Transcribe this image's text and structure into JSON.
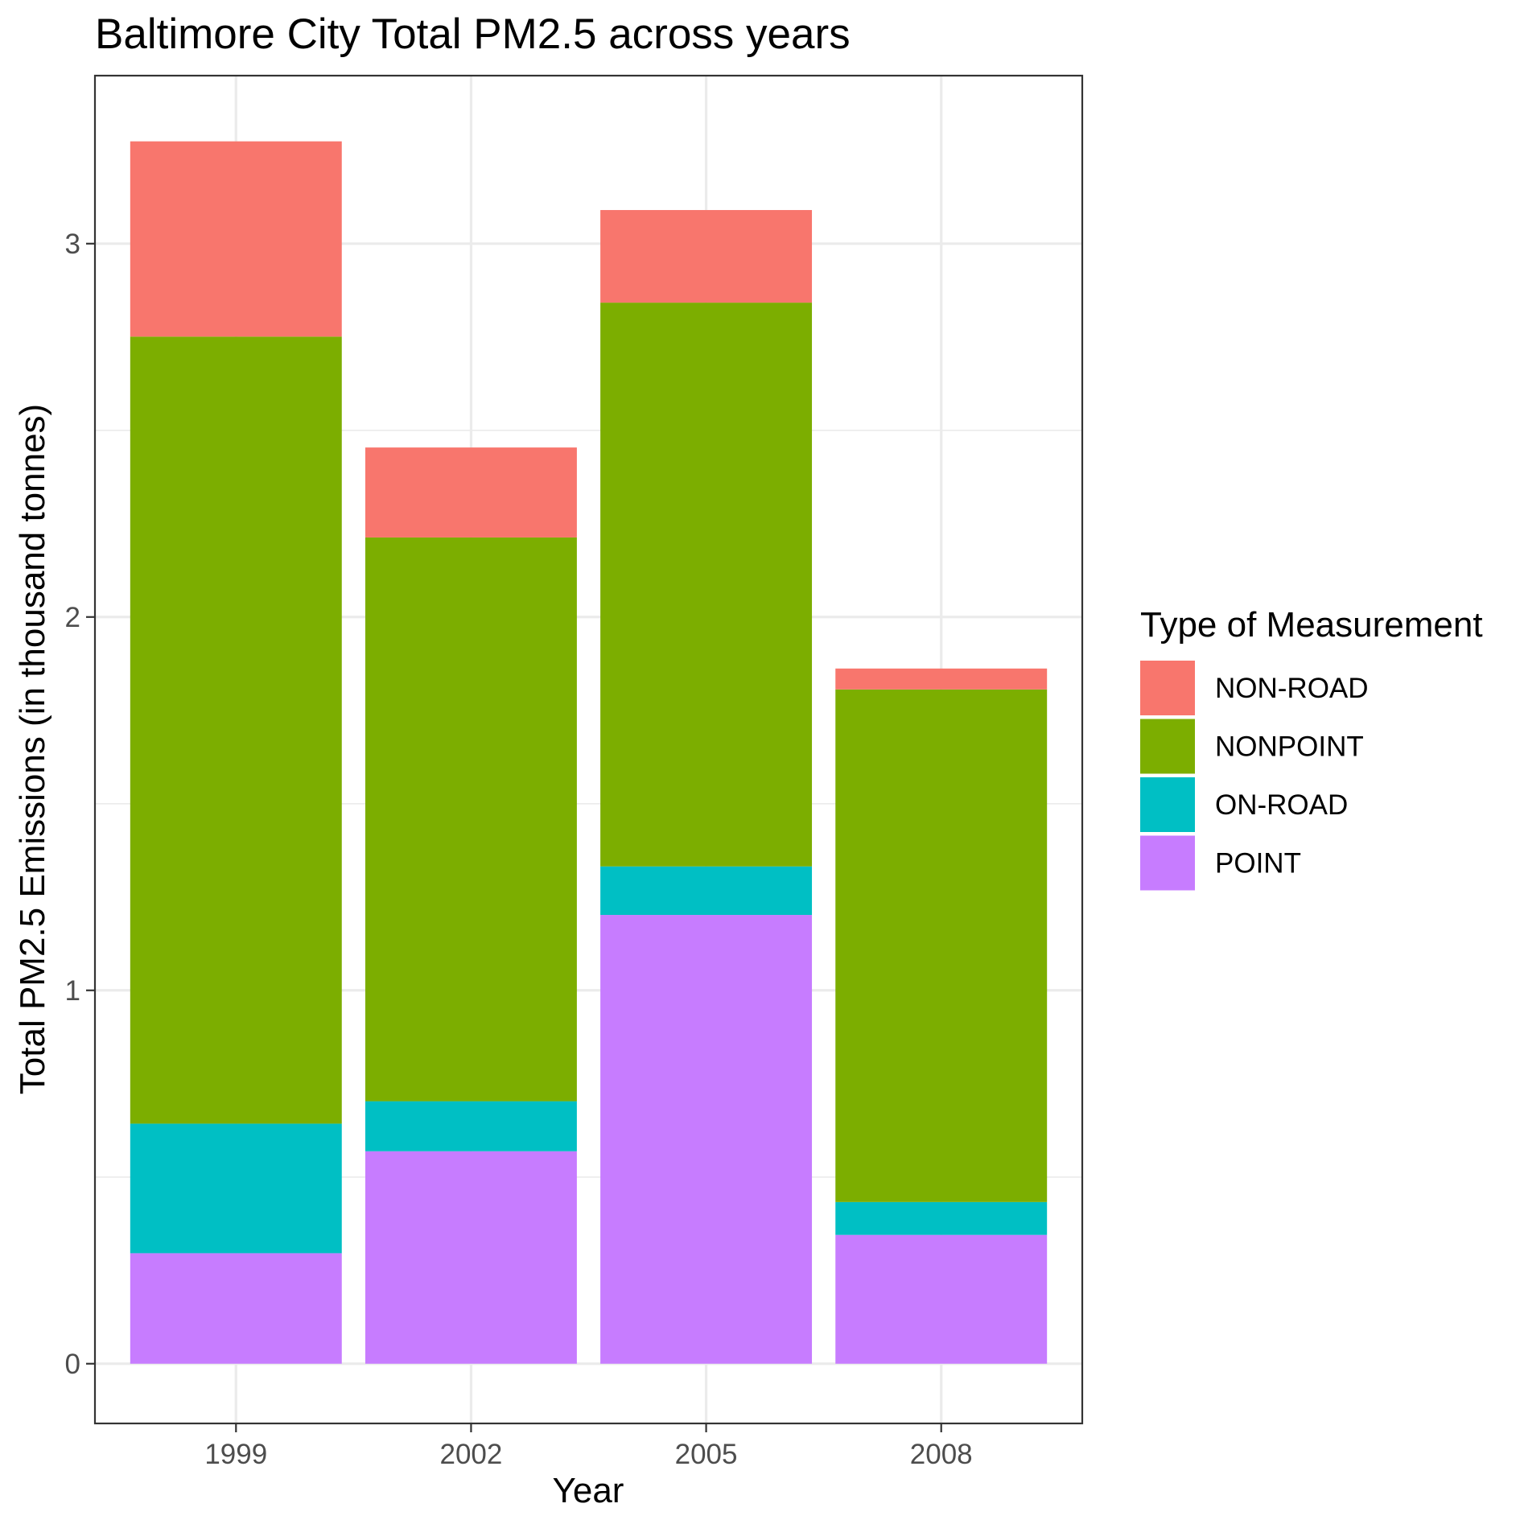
{
  "chart_data": {
    "type": "bar",
    "stacked": true,
    "title": "Baltimore City Total PM2.5 across years",
    "xlabel": "Year",
    "ylabel": "Total PM2.5 Emissions (in thousand tonnes)",
    "categories": [
      "1999",
      "2002",
      "2005",
      "2008"
    ],
    "ylim": [
      -0.16,
      3.45
    ],
    "yticks": [
      0,
      1,
      2,
      3
    ],
    "grid": true,
    "legend": {
      "title": "Type of Measurement",
      "position": "right"
    },
    "series": [
      {
        "name": "POINT",
        "color": "#C77CFF",
        "values": [
          0.296,
          0.569,
          1.202,
          0.345
        ]
      },
      {
        "name": "ON-ROAD",
        "color": "#00BFC4",
        "values": [
          0.347,
          0.134,
          0.13,
          0.088
        ]
      },
      {
        "name": "NONPOINT",
        "color": "#7CAE00",
        "values": [
          2.108,
          1.51,
          1.51,
          1.373
        ]
      },
      {
        "name": "NON-ROAD",
        "color": "#F8766D",
        "values": [
          0.523,
          0.241,
          0.248,
          0.056
        ]
      }
    ],
    "legend_order": [
      "NON-ROAD",
      "NONPOINT",
      "ON-ROAD",
      "POINT"
    ]
  }
}
